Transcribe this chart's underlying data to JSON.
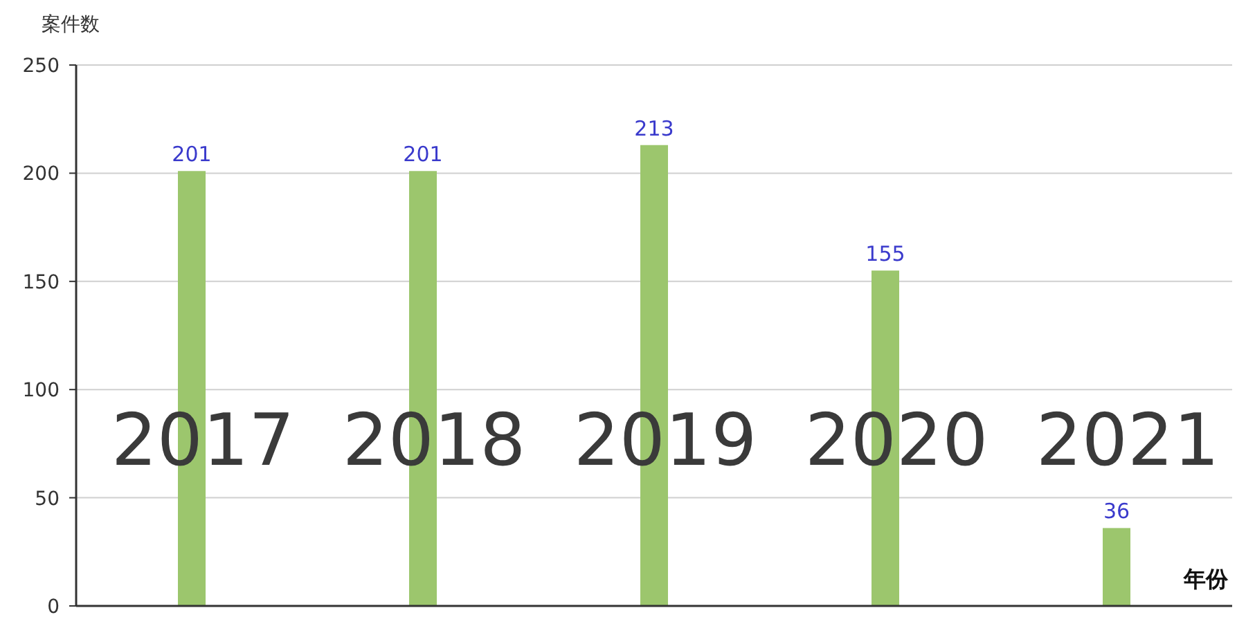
{
  "chart_data": {
    "type": "bar",
    "xlabel": "年份",
    "ylabel": "案件数",
    "categories": [
      "2017",
      "2018",
      "2019",
      "2020",
      "2021"
    ],
    "values": [
      201,
      201,
      213,
      155,
      36
    ],
    "color": "#9cc66d",
    "ylim": [
      0,
      250
    ],
    "yticks": [
      0,
      50,
      100,
      150,
      200,
      250
    ],
    "grid": "y",
    "data_labels": true
  }
}
